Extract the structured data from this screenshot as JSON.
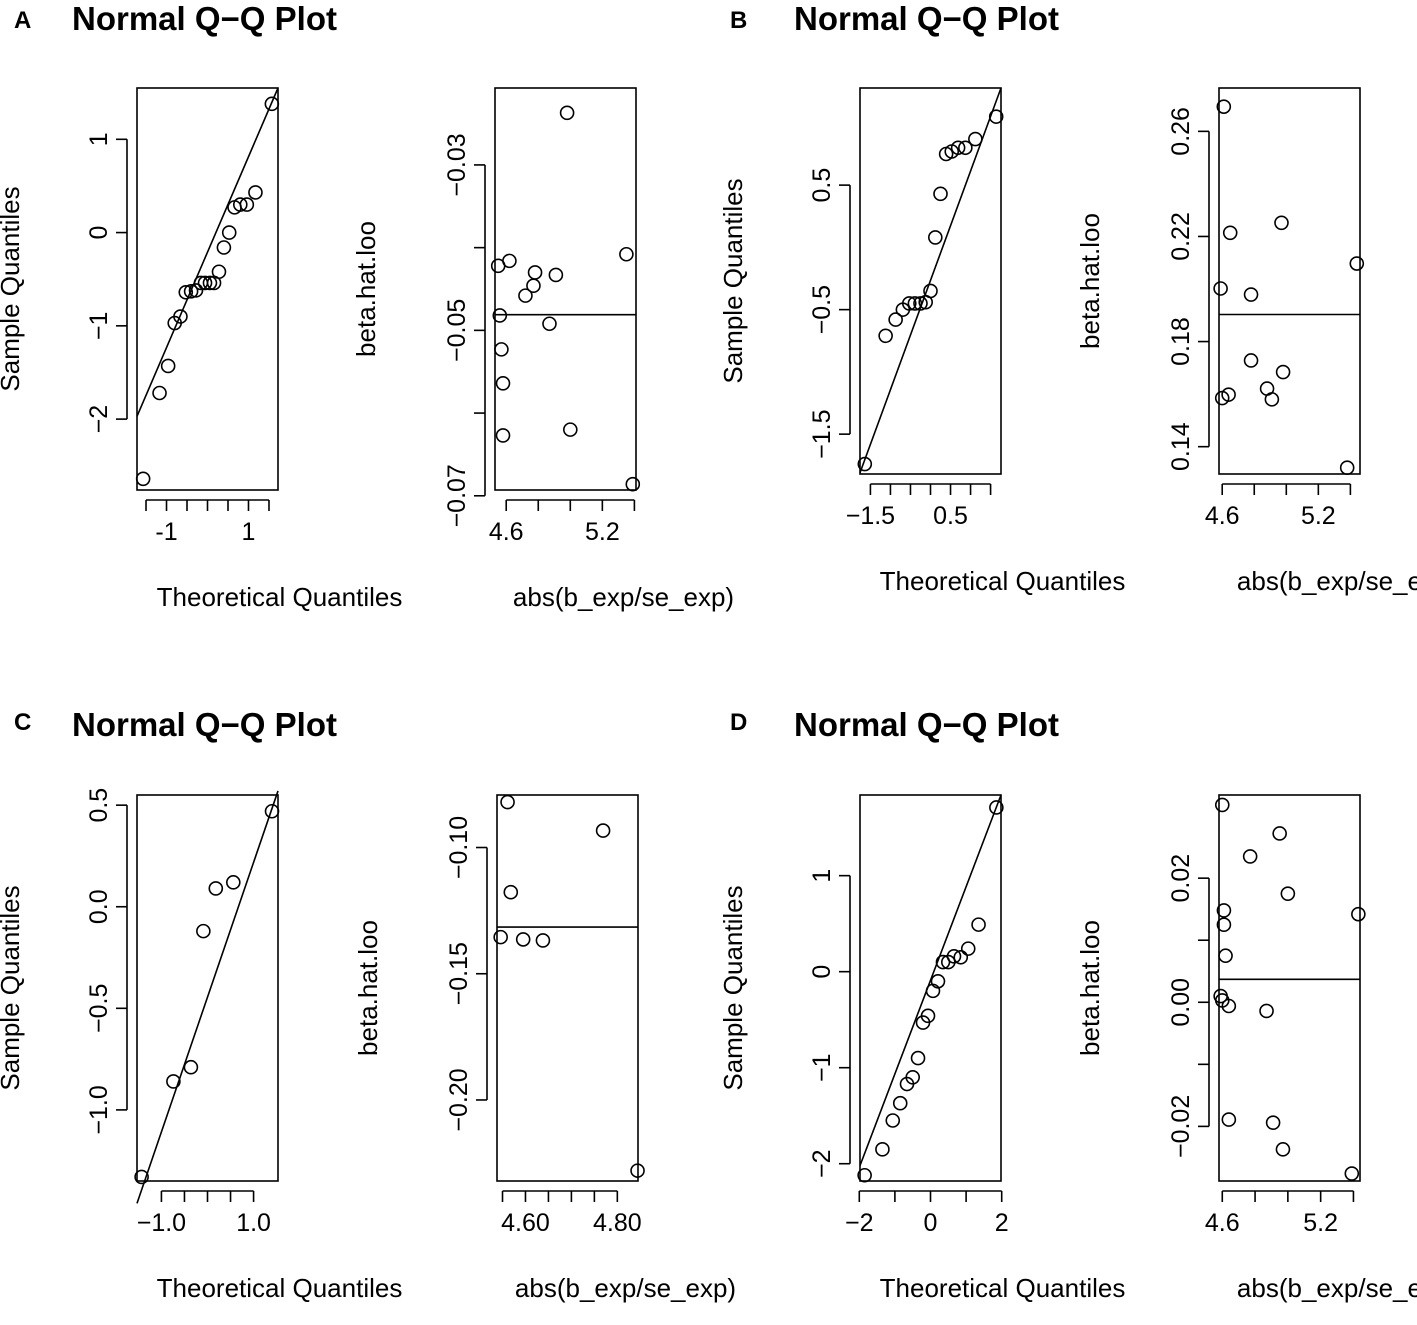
{
  "chart_data": [
    {
      "panel": "A",
      "type": "scatter",
      "kind": "qq",
      "title": "Normal Q−Q Plot",
      "xlabel": "Theoretical Quantiles",
      "ylabel": "Sample Quantiles",
      "xlim": [
        -1.72,
        1.72
      ],
      "ylim": [
        -2.76,
        1.55
      ],
      "xticks": [
        -1.5,
        -1,
        -0.5,
        0,
        0.5,
        1,
        1.5
      ],
      "xticklabels": [
        "-1",
        "1"
      ],
      "xticklabel_values": [
        -1,
        1
      ],
      "yticks": [
        -2,
        -1,
        0,
        1
      ],
      "yticklabels": [
        "−2",
        "−1",
        "0",
        "1"
      ],
      "line": [
        [
          -1.72,
          -1.97
        ],
        [
          1.72,
          1.55
        ]
      ],
      "x": [
        -1.57,
        -1.17,
        -0.96,
        -0.8,
        -0.66,
        -0.53,
        -0.4,
        -0.28,
        -0.16,
        -0.06,
        0.06,
        0.16,
        0.28,
        0.4,
        0.53,
        0.66,
        0.8,
        0.96,
        1.17,
        1.57
      ],
      "y": [
        -2.64,
        -1.72,
        -1.43,
        -0.97,
        -0.9,
        -0.64,
        -0.63,
        -0.62,
        -0.54,
        -0.54,
        -0.54,
        -0.54,
        -0.42,
        -0.16,
        0.0,
        0.27,
        0.3,
        0.3,
        0.43,
        1.38
      ]
    },
    {
      "panel": "A",
      "type": "scatter",
      "xlabel": "abs(b_exp/se_exp)",
      "ylabel": "beta.hat.loo",
      "xlim": [
        4.53,
        5.41
      ],
      "ylim": [
        -0.0693,
        -0.0207
      ],
      "xticks": [
        4.6,
        4.8,
        5.0,
        5.2,
        5.4
      ],
      "xticklabels": [
        "4.6",
        "5.2"
      ],
      "xticklabel_values": [
        4.6,
        5.2
      ],
      "yticks": [
        -0.07,
        -0.06,
        -0.05,
        -0.04,
        -0.03
      ],
      "yticklabels": [
        "−0.07",
        "−0.05",
        "−0.03"
      ],
      "yticklabel_values": [
        -0.07,
        -0.05,
        -0.03
      ],
      "hline": -0.0481,
      "x": [
        4.55,
        4.56,
        4.57,
        4.58,
        4.58,
        4.62,
        4.72,
        4.77,
        4.78,
        4.87,
        4.91,
        4.98,
        5.0,
        5.35,
        5.39
      ],
      "y": [
        -0.0422,
        -0.0482,
        -0.0523,
        -0.0564,
        -0.0627,
        -0.0416,
        -0.0458,
        -0.0446,
        -0.043,
        -0.0492,
        -0.0433,
        -0.0237,
        -0.062,
        -0.0408,
        -0.0686
      ]
    },
    {
      "panel": "B",
      "type": "scatter",
      "kind": "qq",
      "title": "Normal Q−Q Plot",
      "xlabel": "Theoretical Quantiles",
      "ylabel": "Sample Quantiles",
      "xlim": [
        -1.76,
        1.76
      ],
      "ylim": [
        -1.82,
        1.28
      ],
      "xticks": [
        -1.5,
        -1.0,
        -0.5,
        0,
        0.5,
        1.0,
        1.5
      ],
      "xticklabels": [
        "−1.5",
        "0.5"
      ],
      "xticklabel_values": [
        -1.5,
        0.5
      ],
      "yticks": [
        -1.5,
        -0.5,
        0.5
      ],
      "yticklabels": [
        "−1.5",
        "−0.5",
        "0.5"
      ],
      "line": [
        [
          -1.76,
          -1.81
        ],
        [
          1.76,
          1.28
        ]
      ],
      "x": [
        -1.64,
        -1.12,
        -0.87,
        -0.69,
        -0.53,
        -0.39,
        -0.25,
        -0.12,
        0.0,
        0.12,
        0.25,
        0.39,
        0.53,
        0.69,
        0.87,
        1.12,
        1.64
      ],
      "y": [
        -1.74,
        -0.71,
        -0.58,
        -0.5,
        -0.45,
        -0.45,
        -0.45,
        -0.44,
        -0.35,
        0.08,
        0.43,
        0.75,
        0.77,
        0.8,
        0.8,
        0.87,
        1.05
      ]
    },
    {
      "panel": "B",
      "type": "scatter",
      "xlabel": "abs(b_exp/se_exp)",
      "ylabel": "beta.hat.loo",
      "xlim": [
        4.58,
        5.46
      ],
      "ylim": [
        0.1296,
        0.2765
      ],
      "xticks": [
        4.6,
        4.8,
        5.0,
        5.2,
        5.4
      ],
      "xticklabels": [
        "4.6",
        "5.2"
      ],
      "xticklabel_values": [
        4.6,
        5.2
      ],
      "yticks": [
        0.14,
        0.18,
        0.22,
        0.26
      ],
      "yticklabels": [
        "0.14",
        "0.18",
        "0.22",
        "0.26"
      ],
      "hline": 0.1903,
      "x": [
        4.59,
        4.6,
        4.61,
        4.64,
        4.65,
        4.78,
        4.78,
        4.88,
        4.91,
        4.97,
        4.98,
        5.38,
        5.44
      ],
      "y": [
        0.2002,
        0.1585,
        0.2694,
        0.1598,
        0.2214,
        0.1979,
        0.1728,
        0.1621,
        0.158,
        0.2252,
        0.1684,
        0.132,
        0.2097
      ]
    },
    {
      "panel": "C",
      "type": "scatter",
      "kind": "qq",
      "title": "Normal Q−Q Plot",
      "xlabel": "Theoretical Quantiles",
      "ylabel": "Sample Quantiles",
      "xlim": [
        -1.53,
        1.53
      ],
      "ylim": [
        -1.35,
        0.55
      ],
      "xticks": [
        -1.0,
        -0.5,
        0,
        0.5,
        1.0
      ],
      "xticklabels": [
        "−1.0",
        "1.0"
      ],
      "xticklabel_values": [
        -1.0,
        1.0
      ],
      "yticks": [
        -1.0,
        -0.5,
        0.0,
        0.5
      ],
      "yticklabels": [
        "−1.0",
        "−0.5",
        "0.0",
        "0.5"
      ],
      "line": [
        [
          -1.53,
          -1.46
        ],
        [
          1.53,
          0.57
        ]
      ],
      "x": [
        -1.43,
        -0.74,
        -0.36,
        -0.09,
        0.18,
        0.56,
        1.4
      ],
      "y": [
        -1.33,
        -0.86,
        -0.79,
        -0.12,
        0.09,
        0.12,
        0.47
      ]
    },
    {
      "panel": "C",
      "type": "scatter",
      "xlabel": "abs(b_exp/se_exp)",
      "ylabel": "beta.hat.loo",
      "xlim": [
        4.538,
        4.845
      ],
      "ylim": [
        -0.2321,
        -0.0792
      ],
      "xticks": [
        4.55,
        4.6,
        4.65,
        4.7,
        4.75,
        4.8
      ],
      "xticklabels": [
        "4.60",
        "4.80"
      ],
      "xticklabel_values": [
        4.6,
        4.8
      ],
      "yticks": [
        -0.2,
        -0.15,
        -0.1
      ],
      "yticklabels": [
        "−0.20",
        "−0.15",
        "−0.10"
      ],
      "hline": -0.1315,
      "x": [
        4.546,
        4.561,
        4.568,
        4.595,
        4.638,
        4.769,
        4.844
      ],
      "y": [
        -0.1355,
        -0.082,
        -0.1177,
        -0.1364,
        -0.1368,
        -0.0933,
        -0.228
      ]
    },
    {
      "panel": "D",
      "type": "scatter",
      "kind": "qq",
      "title": "Normal Q−Q Plot",
      "xlabel": "Theoretical Quantiles",
      "ylabel": "Sample Quantiles",
      "xlim": [
        -1.98,
        1.98
      ],
      "ylim": [
        -2.18,
        1.84
      ],
      "xticks": [
        -2,
        -1,
        0,
        1,
        2
      ],
      "xticklabels": [
        "−2",
        "0",
        "2"
      ],
      "xticklabel_values": [
        -2,
        0,
        2
      ],
      "yticks": [
        -2,
        -1,
        0,
        1
      ],
      "yticklabels": [
        "−2",
        "−1",
        "0",
        "1"
      ],
      "line": [
        [
          -1.98,
          -2.02
        ],
        [
          1.98,
          1.84
        ]
      ],
      "x": [
        -1.85,
        -1.35,
        -1.06,
        -0.85,
        -0.66,
        -0.5,
        -0.35,
        -0.21,
        -0.07,
        0.07,
        0.21,
        0.35,
        0.5,
        0.66,
        0.85,
        1.06,
        1.35,
        1.85
      ],
      "y": [
        -2.12,
        -1.85,
        -1.55,
        -1.37,
        -1.17,
        -1.1,
        -0.9,
        -0.53,
        -0.46,
        -0.2,
        -0.1,
        0.1,
        0.1,
        0.16,
        0.15,
        0.24,
        0.49,
        1.71
      ]
    },
    {
      "panel": "D",
      "type": "scatter",
      "xlabel": "abs(b_exp/se_exp)",
      "ylabel": "beta.hat.loo",
      "xlim": [
        4.58,
        5.44
      ],
      "ylim": [
        -0.0288,
        0.0334
      ],
      "xticks": [
        4.6,
        4.8,
        5.0,
        5.2,
        5.4
      ],
      "xticklabels": [
        "4.6",
        "5.2"
      ],
      "xticklabel_values": [
        4.6,
        5.2
      ],
      "yticks": [
        -0.02,
        -0.01,
        0.0,
        0.01,
        0.02
      ],
      "yticklabels": [
        "−0.02",
        "0.00",
        "0.02"
      ],
      "yticklabel_values": [
        -0.02,
        0.0,
        0.02
      ],
      "hline": 0.0037,
      "x": [
        4.59,
        4.6,
        4.6,
        4.61,
        4.61,
        4.62,
        4.64,
        4.64,
        4.77,
        4.87,
        4.91,
        4.95,
        4.97,
        5.0,
        5.39,
        5.43
      ],
      "y": [
        0.001,
        0.0003,
        0.0318,
        0.0125,
        0.0148,
        0.0075,
        -0.0006,
        -0.0189,
        0.0235,
        -0.0014,
        -0.0194,
        0.0272,
        -0.0237,
        0.0175,
        -0.0276,
        0.0142
      ]
    }
  ]
}
